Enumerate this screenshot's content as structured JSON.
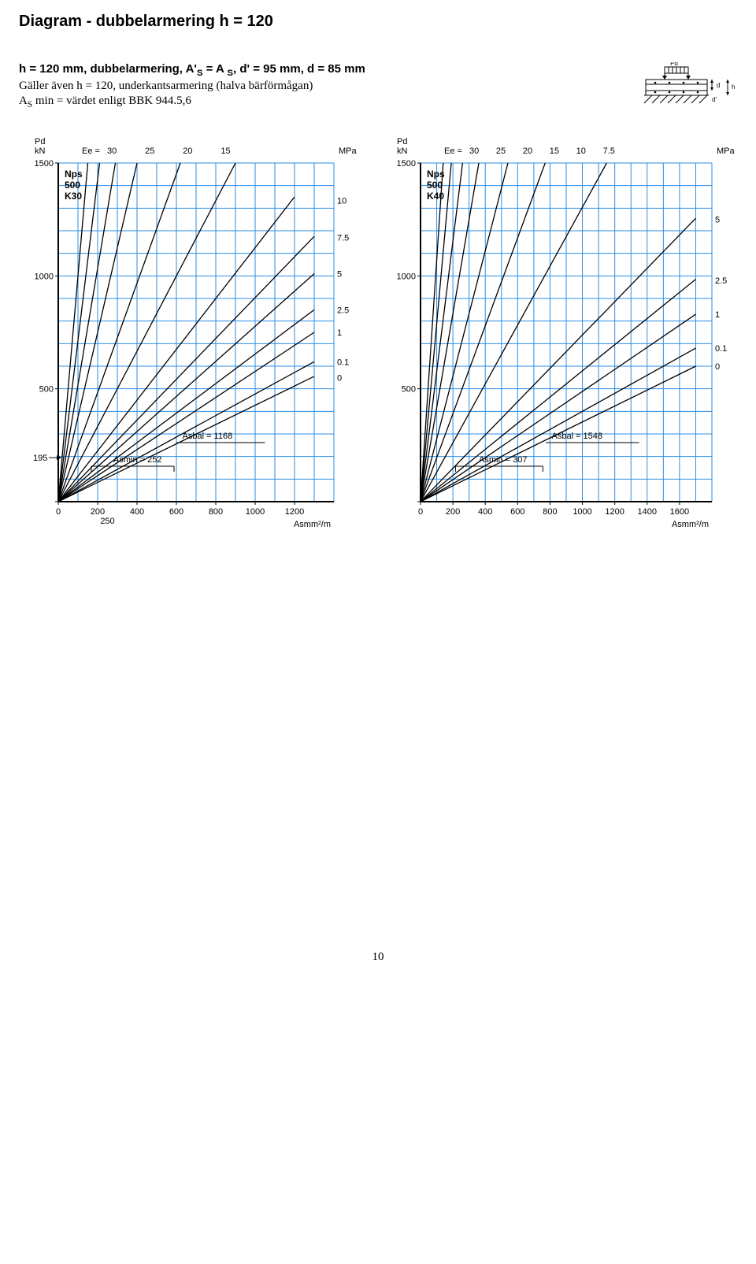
{
  "title": "Diagram - dubbelarmering h = 120",
  "intro": {
    "line1_pre": "h = 120 mm, dubbelarmering, A'",
    "line1_post": ", d' = 95 mm, d = 85 mm",
    "line2": "Gäller även h = 120, underkantsarmering (halva bärförmågan)",
    "line3_pre": "A",
    "line3_post": " min = värdet enligt BBK 944.5,6"
  },
  "cross_section": {
    "Pd": "Pd",
    "d": "d",
    "d_prime": "d'",
    "h": "h"
  },
  "chart_left": {
    "Pd": "Pd",
    "kN": "kN",
    "MPa": "MPa",
    "Ee_label": "Ee =",
    "head_vals": [
      "30",
      "25",
      "20",
      "15"
    ],
    "Nps": "Nps",
    "rebar": "500",
    "grade": "K30",
    "ylim": [
      0,
      1500
    ],
    "yticks": [
      0,
      500,
      1000,
      1500
    ],
    "xlim": [
      0,
      1400
    ],
    "xticks": [
      0,
      200,
      400,
      600,
      800,
      1000,
      1200
    ],
    "x_extra": [
      "250"
    ],
    "xaxis_unit": "Asmm²/m",
    "grid_color": "#2b8ee6",
    "axis_color": "#000000",
    "line_color": "#000000",
    "bg": "#ffffff",
    "right_labels": [
      {
        "y": 1335,
        "t": "10"
      },
      {
        "y": 1170,
        "t": "7.5"
      },
      {
        "y": 1010,
        "t": "5"
      },
      {
        "y": 850,
        "t": "2.5"
      },
      {
        "y": 750,
        "t": "1"
      },
      {
        "y": 620,
        "t": "0.1"
      },
      {
        "y": 550,
        "t": "0"
      }
    ],
    "special": {
      "side_195": "195",
      "Asbal": "Asbal = 1168",
      "Asmin": "Asmin = 252"
    },
    "lines": [
      [
        [
          0,
          0
        ],
        [
          150,
          1500
        ]
      ],
      [
        [
          0,
          0
        ],
        [
          210,
          1500
        ]
      ],
      [
        [
          0,
          0
        ],
        [
          290,
          1500
        ]
      ],
      [
        [
          0,
          0
        ],
        [
          400,
          1500
        ]
      ],
      [
        [
          0,
          0
        ],
        [
          620,
          1500
        ]
      ],
      [
        [
          0,
          0
        ],
        [
          900,
          1500
        ]
      ],
      [
        [
          0,
          0
        ],
        [
          1200,
          1350
        ]
      ],
      [
        [
          0,
          0
        ],
        [
          1300,
          1175
        ]
      ],
      [
        [
          0,
          0
        ],
        [
          1300,
          1010
        ]
      ],
      [
        [
          0,
          0
        ],
        [
          1300,
          850
        ]
      ],
      [
        [
          0,
          0
        ],
        [
          1300,
          750
        ]
      ],
      [
        [
          0,
          0
        ],
        [
          1300,
          620
        ]
      ],
      [
        [
          0,
          0
        ],
        [
          1300,
          555
        ]
      ]
    ]
  },
  "chart_right": {
    "Pd": "Pd",
    "kN": "kN",
    "MPa": "MPa",
    "Ee_label": "Ee =",
    "head_vals": [
      "30",
      "25",
      "20",
      "15",
      "10",
      "7.5"
    ],
    "Nps": "Nps",
    "rebar": "500",
    "grade": "K40",
    "ylim": [
      0,
      1500
    ],
    "yticks": [
      0,
      500,
      1000,
      1500
    ],
    "xlim": [
      0,
      1800
    ],
    "xticks": [
      0,
      200,
      400,
      600,
      800,
      1000,
      1200,
      1400,
      1600
    ],
    "xaxis_unit": "Asmm²/m",
    "grid_color": "#2b8ee6",
    "axis_color": "#000000",
    "line_color": "#000000",
    "bg": "#ffffff",
    "right_labels": [
      {
        "y": 1250,
        "t": "5"
      },
      {
        "y": 980,
        "t": "2.5"
      },
      {
        "y": 830,
        "t": "1"
      },
      {
        "y": 680,
        "t": "0.1"
      },
      {
        "y": 600,
        "t": "0"
      }
    ],
    "special": {
      "Asbal": "Asbal = 1548",
      "Asmin": "Asmin = 307"
    },
    "lines": [
      [
        [
          0,
          0
        ],
        [
          140,
          1500
        ]
      ],
      [
        [
          0,
          0
        ],
        [
          190,
          1500
        ]
      ],
      [
        [
          0,
          0
        ],
        [
          260,
          1500
        ]
      ],
      [
        [
          0,
          0
        ],
        [
          360,
          1500
        ]
      ],
      [
        [
          0,
          0
        ],
        [
          540,
          1500
        ]
      ],
      [
        [
          0,
          0
        ],
        [
          770,
          1500
        ]
      ],
      [
        [
          0,
          0
        ],
        [
          1150,
          1500
        ]
      ],
      [
        [
          0,
          0
        ],
        [
          1700,
          1255
        ]
      ],
      [
        [
          0,
          0
        ],
        [
          1700,
          985
        ]
      ],
      [
        [
          0,
          0
        ],
        [
          1700,
          830
        ]
      ],
      [
        [
          0,
          0
        ],
        [
          1700,
          680
        ]
      ],
      [
        [
          0,
          0
        ],
        [
          1700,
          600
        ]
      ]
    ]
  },
  "page_number": "10"
}
